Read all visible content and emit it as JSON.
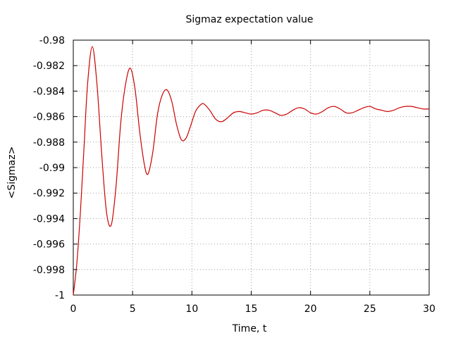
{
  "chart_data": {
    "type": "line",
    "title": "Sigmaz expectation value",
    "xlabel": "Time, t",
    "ylabel": "<Sigmaz>",
    "xlim": [
      0,
      30
    ],
    "ylim": [
      -1,
      -0.98
    ],
    "grid": true,
    "line_color": "#cc0000",
    "x_ticks": [
      0,
      5,
      10,
      15,
      20,
      25,
      30
    ],
    "x_tick_labels": [
      "0",
      "5",
      "10",
      "15",
      "20",
      "25",
      "30"
    ],
    "y_ticks": [
      -1,
      -0.998,
      -0.996,
      -0.994,
      -0.992,
      -0.99,
      -0.988,
      -0.986,
      -0.984,
      -0.982,
      -0.98
    ],
    "y_tick_labels": [
      "-1",
      "-0.998",
      "-0.996",
      "-0.994",
      "-0.992",
      "-0.99",
      "-0.988",
      "-0.986",
      "-0.984",
      "-0.982",
      "-0.98"
    ],
    "series": [
      {
        "x": [
          0,
          0.3,
          0.6,
          0.9,
          1.2,
          1.6,
          2.0,
          2.4,
          2.8,
          3.2,
          3.6,
          4.0,
          4.4,
          4.8,
          5.2,
          5.6,
          6.0,
          6.3,
          6.7,
          7.1,
          7.5,
          7.9,
          8.3,
          8.7,
          9.1,
          9.5,
          9.9,
          10.3,
          10.7,
          11.0,
          11.5,
          12.0,
          12.5,
          13.0,
          13.5,
          14.0,
          14.5,
          15.0,
          15.5,
          16.0,
          16.5,
          17.0,
          17.5,
          18.0,
          18.5,
          19.0,
          19.5,
          20.0,
          20.5,
          21.0,
          21.5,
          22.0,
          22.5,
          23.0,
          23.5,
          24.0,
          24.5,
          25.0,
          25.5,
          26.0,
          26.5,
          27.0,
          27.5,
          28.0,
          28.5,
          29.0,
          29.5,
          30.0
        ],
        "y": [
          -1.0,
          -0.9975,
          -0.9935,
          -0.9885,
          -0.9835,
          -0.9805,
          -0.9835,
          -0.989,
          -0.9935,
          -0.9945,
          -0.9915,
          -0.9865,
          -0.9835,
          -0.9822,
          -0.9838,
          -0.9872,
          -0.9898,
          -0.9905,
          -0.9888,
          -0.9858,
          -0.9843,
          -0.9839,
          -0.9848,
          -0.9866,
          -0.9878,
          -0.9877,
          -0.9867,
          -0.9856,
          -0.9851,
          -0.985,
          -0.9855,
          -0.9862,
          -0.9864,
          -0.9861,
          -0.9857,
          -0.9856,
          -0.9857,
          -0.9858,
          -0.9857,
          -0.9855,
          -0.9855,
          -0.9857,
          -0.9859,
          -0.9858,
          -0.9855,
          -0.9853,
          -0.9854,
          -0.9857,
          -0.9858,
          -0.9856,
          -0.9853,
          -0.9852,
          -0.9854,
          -0.9857,
          -0.9857,
          -0.9855,
          -0.9853,
          -0.9852,
          -0.9854,
          -0.9855,
          -0.9856,
          -0.9855,
          -0.9853,
          -0.9852,
          -0.9852,
          -0.9853,
          -0.9854,
          -0.9854
        ]
      }
    ]
  }
}
